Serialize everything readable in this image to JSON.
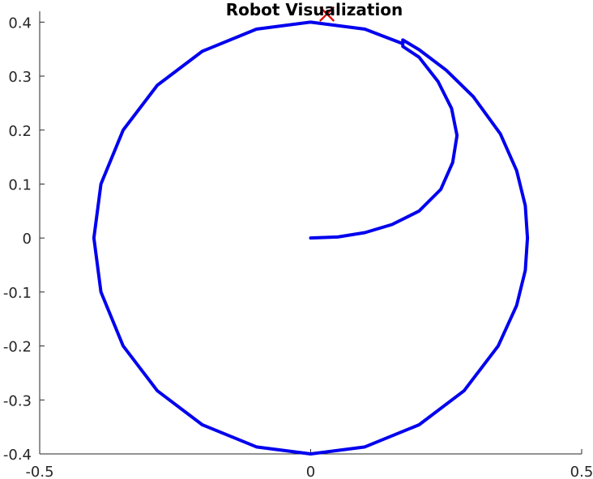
{
  "chart_data": {
    "type": "line",
    "title": "Robot Visualization",
    "xlabel": "",
    "ylabel": "",
    "xlim": [
      -0.5,
      0.5
    ],
    "ylim": [
      -0.4,
      0.42
    ],
    "x_ticks": [
      -0.5,
      0,
      0.5
    ],
    "x_tick_labels": [
      "-0.5",
      "0",
      "0.5"
    ],
    "y_ticks": [
      0.4,
      0.3,
      0.2,
      0.1,
      0,
      -0.1,
      -0.2,
      -0.3,
      -0.4
    ],
    "y_tick_labels": [
      "0.4",
      "0.3",
      "0.2",
      "0.1",
      "0",
      "-0.1",
      "-0.2",
      "-0.3",
      "-0.4"
    ],
    "grid": false,
    "legend": "none",
    "colors": {
      "path": "#0000ee",
      "marker": "#dd0000",
      "axis": "#262626"
    },
    "series": [
      {
        "type": "line",
        "values": [
          {
            "x": 0,
            "y": 0
          },
          {
            "x": 0.05,
            "y": 0.002
          },
          {
            "x": 0.1,
            "y": 0.01
          },
          {
            "x": 0.15,
            "y": 0.025
          },
          {
            "x": 0.2,
            "y": 0.05
          },
          {
            "x": 0.24,
            "y": 0.09
          },
          {
            "x": 0.262,
            "y": 0.14
          },
          {
            "x": 0.27,
            "y": 0.19
          },
          {
            "x": 0.26,
            "y": 0.24
          },
          {
            "x": 0.235,
            "y": 0.29
          },
          {
            "x": 0.2,
            "y": 0.335
          },
          {
            "x": 0.17,
            "y": 0.355
          },
          {
            "x": 0.17,
            "y": 0.367
          },
          {
            "x": 0.2,
            "y": 0.349
          },
          {
            "x": 0.25,
            "y": 0.311
          },
          {
            "x": 0.3,
            "y": 0.262
          },
          {
            "x": 0.35,
            "y": 0.193
          },
          {
            "x": 0.38,
            "y": 0.125
          },
          {
            "x": 0.396,
            "y": 0.06
          },
          {
            "x": 0.4,
            "y": 0
          },
          {
            "x": 0.396,
            "y": -0.06
          },
          {
            "x": 0.38,
            "y": -0.125
          },
          {
            "x": 0.346,
            "y": -0.2
          },
          {
            "x": 0.283,
            "y": -0.283
          },
          {
            "x": 0.2,
            "y": -0.346
          },
          {
            "x": 0.1,
            "y": -0.387
          },
          {
            "x": 0,
            "y": -0.4
          },
          {
            "x": -0.1,
            "y": -0.387
          },
          {
            "x": -0.2,
            "y": -0.346
          },
          {
            "x": -0.283,
            "y": -0.283
          },
          {
            "x": -0.346,
            "y": -0.2
          },
          {
            "x": -0.387,
            "y": -0.1
          },
          {
            "x": -0.4,
            "y": 0
          },
          {
            "x": -0.387,
            "y": 0.1
          },
          {
            "x": -0.346,
            "y": 0.2
          },
          {
            "x": -0.283,
            "y": 0.283
          },
          {
            "x": -0.2,
            "y": 0.346
          },
          {
            "x": -0.1,
            "y": 0.387
          },
          {
            "x": 0,
            "y": 0.4
          },
          {
            "x": 0.1,
            "y": 0.387
          },
          {
            "x": 0.17,
            "y": 0.36
          }
        ]
      },
      {
        "type": "scatter",
        "marker": "x",
        "values": [
          {
            "x": 0.03,
            "y": 0.415
          }
        ]
      }
    ]
  }
}
